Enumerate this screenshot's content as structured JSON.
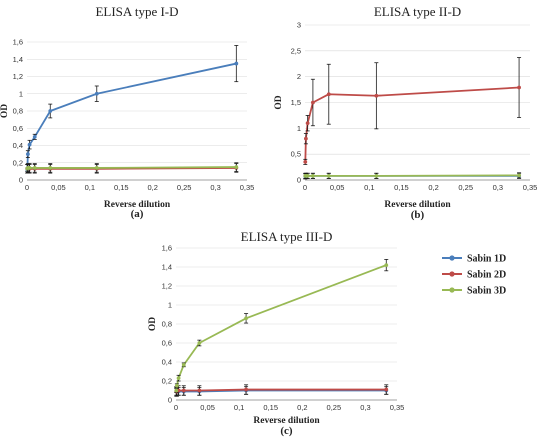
{
  "chart_data": [
    {
      "type": "line",
      "title": "ELISA type I-D",
      "xlabel": "Reverse dilution",
      "ylabel": "OD",
      "panel_label": "(a)",
      "xlim": [
        0,
        0.35
      ],
      "ylim": [
        0,
        1.6
      ],
      "xticks": [
        "0",
        "0,05",
        "0,1",
        "0,15",
        "0,2",
        "0,25",
        "0,3",
        "0,35"
      ],
      "yticks": [
        "0",
        "0,2",
        "0,4",
        "0,6",
        "0,8",
        "1",
        "1,2",
        "1,4",
        "1,6"
      ],
      "x": [
        0.00046,
        0.0014,
        0.0041,
        0.0123,
        0.037,
        0.111,
        0.333
      ],
      "series": [
        {
          "name": "Sabin 1D",
          "color": "#4a7ebb",
          "values": [
            0.12,
            0.3,
            0.41,
            0.5,
            0.8,
            1.0,
            1.35
          ],
          "errors": [
            0.02,
            0.04,
            0.05,
            0.03,
            0.08,
            0.09,
            0.21
          ]
        },
        {
          "name": "Sabin 2D",
          "color": "#be4b48",
          "values": [
            0.13,
            0.13,
            0.13,
            0.13,
            0.13,
            0.13,
            0.14
          ],
          "errors": [
            0.05,
            0.05,
            0.05,
            0.05,
            0.05,
            0.05,
            0.05
          ]
        },
        {
          "name": "Sabin 3D",
          "color": "#98b954",
          "values": [
            0.13,
            0.14,
            0.14,
            0.14,
            0.14,
            0.14,
            0.15
          ],
          "errors": [
            0.05,
            0.05,
            0.05,
            0.05,
            0.05,
            0.05,
            0.05
          ]
        }
      ]
    },
    {
      "type": "line",
      "title": "ELISA type II-D",
      "xlabel": "Reverse dilution",
      "ylabel": "OD",
      "panel_label": "(b)",
      "xlim": [
        0,
        0.35
      ],
      "ylim": [
        0,
        3
      ],
      "xticks": [
        "0",
        "0,05",
        "0,1",
        "0,15",
        "0,2",
        "0,25",
        "0,3",
        "0,35"
      ],
      "yticks": [
        "0",
        "0,5",
        "1",
        "1,5",
        "2",
        "2,5",
        "3"
      ],
      "x": [
        0.00046,
        0.0014,
        0.0041,
        0.0123,
        0.037,
        0.111,
        0.333
      ],
      "series": [
        {
          "name": "Sabin 1D",
          "color": "#4a7ebb",
          "values": [
            0.07,
            0.08,
            0.08,
            0.08,
            0.08,
            0.08,
            0.08
          ],
          "errors": [
            0.05,
            0.05,
            0.05,
            0.05,
            0.05,
            0.05,
            0.05
          ]
        },
        {
          "name": "Sabin 2D",
          "color": "#be4b48",
          "values": [
            0.35,
            0.8,
            1.1,
            1.5,
            1.66,
            1.63,
            1.79
          ],
          "errors": [
            0.05,
            0.1,
            0.15,
            0.45,
            0.58,
            0.64,
            0.58
          ]
        },
        {
          "name": "Sabin 3D",
          "color": "#98b954",
          "values": [
            0.08,
            0.08,
            0.08,
            0.08,
            0.08,
            0.08,
            0.09
          ],
          "errors": [
            0.05,
            0.05,
            0.05,
            0.05,
            0.05,
            0.05,
            0.05
          ]
        }
      ]
    },
    {
      "type": "line",
      "title": "ELISA type III-D",
      "xlabel": "Reverse dilution",
      "ylabel": "OD",
      "panel_label": "(c)",
      "xlim": [
        0,
        0.35
      ],
      "ylim": [
        0,
        1.6
      ],
      "xticks": [
        "0",
        "0,05",
        "0,1",
        "0,15",
        "0,2",
        "0,25",
        "0,3",
        "0,35"
      ],
      "yticks": [
        "0",
        "0,2",
        "0,4",
        "0,6",
        "0,8",
        "1",
        "1,2",
        "1,4",
        "1,6"
      ],
      "x": [
        0.00046,
        0.0014,
        0.0041,
        0.0123,
        0.037,
        0.111,
        0.333
      ],
      "series": [
        {
          "name": "Sabin 1D",
          "color": "#4a7ebb",
          "values": [
            0.09,
            0.09,
            0.09,
            0.09,
            0.09,
            0.1,
            0.1
          ],
          "errors": [
            0.04,
            0.04,
            0.04,
            0.04,
            0.04,
            0.04,
            0.04
          ]
        },
        {
          "name": "Sabin 2D",
          "color": "#be4b48",
          "values": [
            0.09,
            0.09,
            0.1,
            0.1,
            0.1,
            0.11,
            0.11
          ],
          "errors": [
            0.05,
            0.05,
            0.05,
            0.05,
            0.05,
            0.05,
            0.05
          ]
        },
        {
          "name": "Sabin 3D",
          "color": "#98b954",
          "values": [
            0.1,
            0.15,
            0.23,
            0.37,
            0.6,
            0.86,
            1.42
          ],
          "errors": [
            0.02,
            0.02,
            0.03,
            0.02,
            0.03,
            0.05,
            0.06
          ]
        }
      ]
    }
  ],
  "legend": [
    {
      "label": "Sabin 1D",
      "color": "#4a7ebb"
    },
    {
      "label": "Sabin 2D",
      "color": "#be4b48"
    },
    {
      "label": "Sabin 3D",
      "color": "#98b954"
    }
  ]
}
